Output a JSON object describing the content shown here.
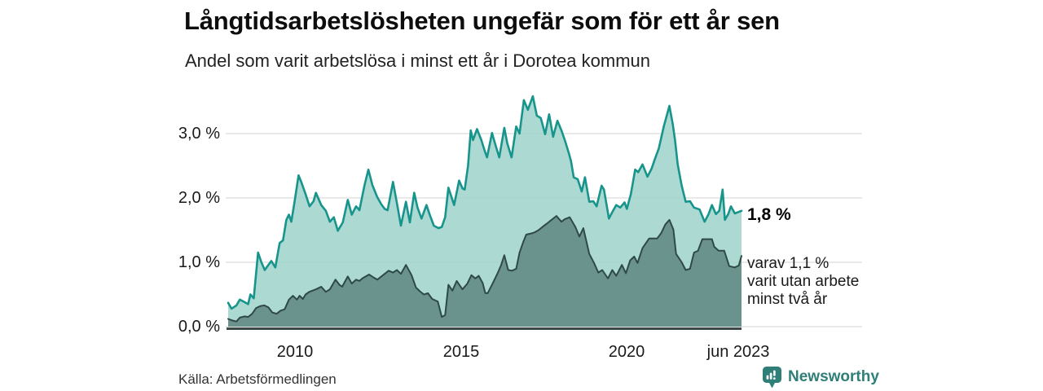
{
  "header": {
    "title": "Långtidsarbetslösheten ungefär som för ett år sen",
    "subtitle": "Andel som varit arbetslösa i minst ett år i Dorotea kommun"
  },
  "chart_data": {
    "type": "area",
    "title": "Långtidsarbetslösheten ungefär som för ett år sen",
    "subtitle": "Andel som varit arbetslösa i minst ett år i Dorotea kommun",
    "xlabel": "",
    "ylabel": "",
    "x_range": [
      2008,
      2023.45
    ],
    "ylim": [
      0,
      3.7
    ],
    "grid": "horizontal",
    "legend_position": "none",
    "y_tick_labels": [
      "3,0 %",
      "2,0 %",
      "1,0 %",
      "0,0 %"
    ],
    "y_tick_values": [
      3,
      2,
      1,
      0
    ],
    "x_tick_labels": [
      "2010",
      "2015",
      "2020",
      "jun 2023"
    ],
    "x_tick_values": [
      2010,
      2015,
      2020,
      2023.42
    ],
    "annotations": {
      "latest_value": "1,8 %",
      "two_year_note": "varav 1,1 %\nvarit utan arbete\nminst två år"
    },
    "colors": {
      "one_year_fill": "#9ed3cb",
      "one_year_line": "#17948b",
      "two_year_fill": "#5f8680",
      "two_year_line": "#2e4946",
      "grid": "#dcdcdc",
      "axis": "#3e4a48"
    },
    "series": [
      {
        "id": "minst-ett-ar",
        "name": "Andel arbetslösa minst ett år",
        "fill": "#9ed3cb",
        "line": "#17948b",
        "stroke_width": 2.6,
        "latest": 1.8,
        "points": [
          [
            2008.0,
            0.37
          ],
          [
            2008.1,
            0.28
          ],
          [
            2008.25,
            0.33
          ],
          [
            2008.35,
            0.42
          ],
          [
            2008.5,
            0.38
          ],
          [
            2008.6,
            0.35
          ],
          [
            2008.67,
            0.5
          ],
          [
            2008.77,
            0.44
          ],
          [
            2008.9,
            1.15
          ],
          [
            2009.0,
            1.0
          ],
          [
            2009.1,
            0.88
          ],
          [
            2009.2,
            0.95
          ],
          [
            2009.3,
            1.02
          ],
          [
            2009.42,
            0.92
          ],
          [
            2009.55,
            1.3
          ],
          [
            2009.65,
            1.34
          ],
          [
            2009.75,
            1.66
          ],
          [
            2009.83,
            1.74
          ],
          [
            2009.9,
            1.63
          ],
          [
            2010.0,
            1.95
          ],
          [
            2010.12,
            2.35
          ],
          [
            2010.2,
            2.25
          ],
          [
            2010.33,
            2.06
          ],
          [
            2010.45,
            1.87
          ],
          [
            2010.57,
            1.95
          ],
          [
            2010.64,
            2.08
          ],
          [
            2010.8,
            1.89
          ],
          [
            2010.94,
            1.8
          ],
          [
            2011.06,
            1.63
          ],
          [
            2011.18,
            1.7
          ],
          [
            2011.3,
            1.49
          ],
          [
            2011.45,
            1.62
          ],
          [
            2011.6,
            1.97
          ],
          [
            2011.72,
            1.74
          ],
          [
            2011.85,
            1.87
          ],
          [
            2011.95,
            1.81
          ],
          [
            2012.1,
            2.19
          ],
          [
            2012.22,
            2.44
          ],
          [
            2012.34,
            2.2
          ],
          [
            2012.49,
            2.01
          ],
          [
            2012.61,
            1.9
          ],
          [
            2012.71,
            1.83
          ],
          [
            2012.8,
            1.81
          ],
          [
            2012.96,
            2.25
          ],
          [
            2013.08,
            1.92
          ],
          [
            2013.2,
            1.57
          ],
          [
            2013.35,
            1.94
          ],
          [
            2013.47,
            1.62
          ],
          [
            2013.6,
            2.08
          ],
          [
            2013.7,
            1.85
          ],
          [
            2013.82,
            1.68
          ],
          [
            2013.97,
            1.89
          ],
          [
            2014.06,
            1.75
          ],
          [
            2014.19,
            1.57
          ],
          [
            2014.33,
            1.53
          ],
          [
            2014.43,
            1.55
          ],
          [
            2014.53,
            1.7
          ],
          [
            2014.63,
            2.16
          ],
          [
            2014.8,
            1.89
          ],
          [
            2014.95,
            2.27
          ],
          [
            2015.05,
            2.15
          ],
          [
            2015.12,
            2.13
          ],
          [
            2015.22,
            2.5
          ],
          [
            2015.3,
            3.05
          ],
          [
            2015.37,
            2.9
          ],
          [
            2015.49,
            3.07
          ],
          [
            2015.62,
            2.9
          ],
          [
            2015.71,
            2.75
          ],
          [
            2015.79,
            2.63
          ],
          [
            2015.94,
            3.01
          ],
          [
            2016.03,
            2.85
          ],
          [
            2016.16,
            2.63
          ],
          [
            2016.31,
            3.09
          ],
          [
            2016.4,
            2.85
          ],
          [
            2016.53,
            2.63
          ],
          [
            2016.67,
            3.11
          ],
          [
            2016.77,
            3.0
          ],
          [
            2016.9,
            3.52
          ],
          [
            2017.02,
            3.37
          ],
          [
            2017.17,
            3.58
          ],
          [
            2017.29,
            3.28
          ],
          [
            2017.41,
            3.24
          ],
          [
            2017.54,
            2.99
          ],
          [
            2017.66,
            3.3
          ],
          [
            2017.78,
            2.95
          ],
          [
            2017.91,
            3.2
          ],
          [
            2018.03,
            3.05
          ],
          [
            2018.13,
            2.9
          ],
          [
            2018.25,
            2.7
          ],
          [
            2018.32,
            2.57
          ],
          [
            2018.4,
            2.32
          ],
          [
            2018.52,
            2.29
          ],
          [
            2018.64,
            2.1
          ],
          [
            2018.74,
            2.32
          ],
          [
            2018.87,
            1.94
          ],
          [
            2018.99,
            1.95
          ],
          [
            2019.09,
            1.87
          ],
          [
            2019.24,
            2.19
          ],
          [
            2019.31,
            2.13
          ],
          [
            2019.46,
            1.68
          ],
          [
            2019.56,
            1.78
          ],
          [
            2019.68,
            1.89
          ],
          [
            2019.8,
            1.85
          ],
          [
            2019.93,
            1.93
          ],
          [
            2020.0,
            1.83
          ],
          [
            2020.12,
            2.06
          ],
          [
            2020.25,
            2.44
          ],
          [
            2020.34,
            2.4
          ],
          [
            2020.47,
            2.52
          ],
          [
            2020.62,
            2.33
          ],
          [
            2020.74,
            2.45
          ],
          [
            2020.84,
            2.6
          ],
          [
            2020.96,
            2.77
          ],
          [
            2021.11,
            3.11
          ],
          [
            2021.21,
            3.3
          ],
          [
            2021.28,
            3.43
          ],
          [
            2021.38,
            3.15
          ],
          [
            2021.45,
            2.9
          ],
          [
            2021.53,
            2.52
          ],
          [
            2021.65,
            2.19
          ],
          [
            2021.77,
            1.94
          ],
          [
            2021.9,
            1.95
          ],
          [
            2022.02,
            1.85
          ],
          [
            2022.19,
            1.82
          ],
          [
            2022.34,
            1.63
          ],
          [
            2022.46,
            1.75
          ],
          [
            2022.56,
            1.89
          ],
          [
            2022.68,
            1.75
          ],
          [
            2022.78,
            1.8
          ],
          [
            2022.88,
            2.13
          ],
          [
            2022.95,
            1.66
          ],
          [
            2023.05,
            1.75
          ],
          [
            2023.13,
            1.87
          ],
          [
            2023.25,
            1.76
          ],
          [
            2023.35,
            1.78
          ],
          [
            2023.45,
            1.8
          ]
        ]
      },
      {
        "id": "minst-tva-ar",
        "name": "varav utan arbete minst två år",
        "fill": "#5f8680",
        "line": "#2e4946",
        "stroke_width": 2,
        "latest": 1.1,
        "points": [
          [
            2008.0,
            0.12
          ],
          [
            2008.1,
            0.1
          ],
          [
            2008.25,
            0.08
          ],
          [
            2008.35,
            0.14
          ],
          [
            2008.5,
            0.16
          ],
          [
            2008.6,
            0.15
          ],
          [
            2008.72,
            0.2
          ],
          [
            2008.84,
            0.29
          ],
          [
            2008.97,
            0.32
          ],
          [
            2009.09,
            0.33
          ],
          [
            2009.21,
            0.3
          ],
          [
            2009.33,
            0.22
          ],
          [
            2009.46,
            0.2
          ],
          [
            2009.58,
            0.25
          ],
          [
            2009.7,
            0.27
          ],
          [
            2009.83,
            0.42
          ],
          [
            2009.95,
            0.48
          ],
          [
            2010.07,
            0.42
          ],
          [
            2010.15,
            0.48
          ],
          [
            2010.25,
            0.43
          ],
          [
            2010.33,
            0.5
          ],
          [
            2010.44,
            0.54
          ],
          [
            2010.64,
            0.58
          ],
          [
            2010.8,
            0.62
          ],
          [
            2010.94,
            0.54
          ],
          [
            2011.06,
            0.58
          ],
          [
            2011.23,
            0.73
          ],
          [
            2011.35,
            0.65
          ],
          [
            2011.43,
            0.62
          ],
          [
            2011.6,
            0.78
          ],
          [
            2011.72,
            0.67
          ],
          [
            2011.85,
            0.73
          ],
          [
            2011.95,
            0.71
          ],
          [
            2012.04,
            0.75
          ],
          [
            2012.24,
            0.81
          ],
          [
            2012.36,
            0.77
          ],
          [
            2012.49,
            0.73
          ],
          [
            2012.66,
            0.8
          ],
          [
            2012.83,
            0.87
          ],
          [
            2012.96,
            0.84
          ],
          [
            2013.08,
            0.88
          ],
          [
            2013.2,
            0.82
          ],
          [
            2013.35,
            0.96
          ],
          [
            2013.52,
            0.8
          ],
          [
            2013.65,
            0.61
          ],
          [
            2013.77,
            0.55
          ],
          [
            2013.89,
            0.5
          ],
          [
            2014.01,
            0.52
          ],
          [
            2014.14,
            0.43
          ],
          [
            2014.31,
            0.39
          ],
          [
            2014.43,
            0.15
          ],
          [
            2014.53,
            0.18
          ],
          [
            2014.63,
            0.65
          ],
          [
            2014.75,
            0.56
          ],
          [
            2014.88,
            0.71
          ],
          [
            2015.05,
            0.58
          ],
          [
            2015.2,
            0.67
          ],
          [
            2015.32,
            0.8
          ],
          [
            2015.44,
            0.75
          ],
          [
            2015.54,
            0.79
          ],
          [
            2015.66,
            0.68
          ],
          [
            2015.74,
            0.52
          ],
          [
            2015.81,
            0.52
          ],
          [
            2015.94,
            0.65
          ],
          [
            2016.11,
            0.83
          ],
          [
            2016.21,
            0.95
          ],
          [
            2016.31,
            1.11
          ],
          [
            2016.43,
            0.88
          ],
          [
            2016.55,
            0.87
          ],
          [
            2016.67,
            0.9
          ],
          [
            2016.77,
            1.15
          ],
          [
            2016.87,
            1.3
          ],
          [
            2016.97,
            1.43
          ],
          [
            2017.14,
            1.45
          ],
          [
            2017.24,
            1.47
          ],
          [
            2017.34,
            1.5
          ],
          [
            2017.46,
            1.55
          ],
          [
            2017.59,
            1.6
          ],
          [
            2017.71,
            1.65
          ],
          [
            2017.88,
            1.72
          ],
          [
            2018.03,
            1.63
          ],
          [
            2018.13,
            1.67
          ],
          [
            2018.28,
            1.7
          ],
          [
            2018.45,
            1.55
          ],
          [
            2018.57,
            1.4
          ],
          [
            2018.69,
            1.53
          ],
          [
            2018.87,
            1.13
          ],
          [
            2019.01,
            0.99
          ],
          [
            2019.14,
            0.84
          ],
          [
            2019.26,
            0.88
          ],
          [
            2019.43,
            0.75
          ],
          [
            2019.56,
            0.88
          ],
          [
            2019.68,
            0.79
          ],
          [
            2019.85,
            0.96
          ],
          [
            2019.97,
            0.83
          ],
          [
            2020.1,
            1.03
          ],
          [
            2020.22,
            1.09
          ],
          [
            2020.32,
            0.99
          ],
          [
            2020.47,
            1.22
          ],
          [
            2020.67,
            1.37
          ],
          [
            2020.91,
            1.37
          ],
          [
            2021.03,
            1.45
          ],
          [
            2021.16,
            1.59
          ],
          [
            2021.28,
            1.66
          ],
          [
            2021.4,
            1.51
          ],
          [
            2021.48,
            1.13
          ],
          [
            2021.65,
            1.0
          ],
          [
            2021.77,
            0.88
          ],
          [
            2021.9,
            0.9
          ],
          [
            2022.02,
            1.15
          ],
          [
            2022.14,
            1.18
          ],
          [
            2022.27,
            1.36
          ],
          [
            2022.56,
            1.36
          ],
          [
            2022.63,
            1.24
          ],
          [
            2022.76,
            1.18
          ],
          [
            2022.93,
            1.18
          ],
          [
            2023.08,
            0.94
          ],
          [
            2023.25,
            0.92
          ],
          [
            2023.37,
            0.95
          ],
          [
            2023.45,
            1.1
          ]
        ]
      }
    ]
  },
  "footer": {
    "source": "Källa: Arbetsförmedlingen",
    "brand": "Newsworthy",
    "brand_color": "#2f7e78"
  }
}
